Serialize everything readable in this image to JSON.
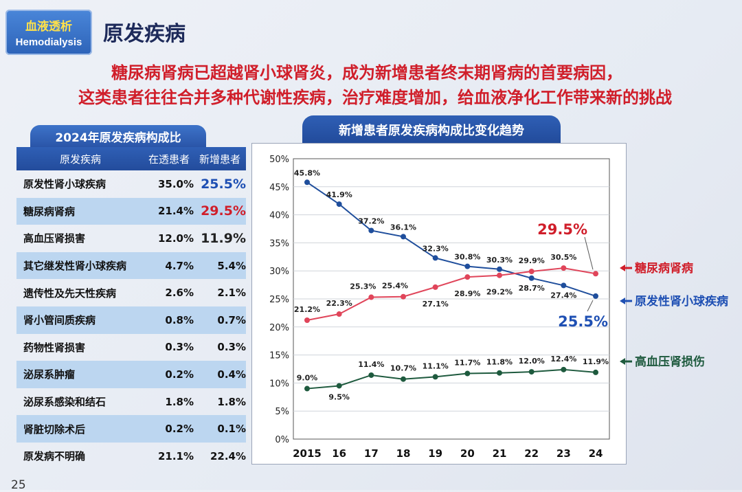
{
  "badge": {
    "zh": "血液透析",
    "en": "Hemodialysis"
  },
  "title": "原发疾病",
  "subtitle_lines": [
    "糖尿病肾病已超越肾小球肾炎，成为新增患者终末期肾病的首要病因，",
    "这类患者往往合并多种代谢性疾病，治疗难度增加，给血液净化工作带来新的挑战"
  ],
  "table": {
    "title": "2024年原发疾病构成比",
    "headers": [
      "原发疾病",
      "在透患者",
      "新增患者"
    ],
    "rows": [
      {
        "name": "原发性肾小球疾病",
        "dialysis": "35.0%",
        "new": "25.5%",
        "style": "big-blue"
      },
      {
        "name": "糖尿病肾病",
        "dialysis": "21.4%",
        "new": "29.5%",
        "style": "big-red"
      },
      {
        "name": "高血压肾损害",
        "dialysis": "12.0%",
        "new": "11.9%",
        "style": "big-dark"
      },
      {
        "name": "其它继发性肾小球疾病",
        "dialysis": "4.7%",
        "new": "5.4%",
        "style": ""
      },
      {
        "name": "遗传性及先天性疾病",
        "dialysis": "2.6%",
        "new": "2.1%",
        "style": ""
      },
      {
        "name": "肾小管间质疾病",
        "dialysis": "0.8%",
        "new": "0.7%",
        "style": ""
      },
      {
        "name": "药物性肾损害",
        "dialysis": "0.3%",
        "new": "0.3%",
        "style": ""
      },
      {
        "name": "泌尿系肿瘤",
        "dialysis": "0.2%",
        "new": "0.4%",
        "style": ""
      },
      {
        "name": "泌尿系感染和结石",
        "dialysis": "1.8%",
        "new": "1.8%",
        "style": ""
      },
      {
        "name": "肾脏切除术后",
        "dialysis": "0.2%",
        "new": "0.1%",
        "style": ""
      },
      {
        "name": "原发病不明确",
        "dialysis": "21.1%",
        "new": "22.4%",
        "style": ""
      }
    ]
  },
  "page_number": "25",
  "chart_data": {
    "type": "line",
    "title": "新增患者原发疾病构成比变化趋势",
    "categories": [
      "2015",
      "16",
      "17",
      "18",
      "19",
      "20",
      "21",
      "22",
      "23",
      "24"
    ],
    "ylim": [
      0,
      50
    ],
    "yticks": [
      "0%",
      "5%",
      "10%",
      "15%",
      "20%",
      "25%",
      "30%",
      "35%",
      "40%",
      "45%",
      "50%"
    ],
    "grid": true,
    "series": [
      {
        "name": "原发性肾小球疾病",
        "color": "#1f4e9c",
        "values": [
          45.8,
          41.9,
          37.2,
          36.1,
          32.3,
          30.8,
          30.3,
          28.7,
          27.4,
          25.5
        ],
        "labels": [
          "45.8%",
          "41.9%",
          "37.2%",
          "36.1%",
          "32.3%",
          "30.8%",
          "30.3%",
          "28.7%",
          "27.4%",
          "25.5%"
        ]
      },
      {
        "name": "糖尿病肾病",
        "color": "#e0455a",
        "values": [
          21.2,
          22.3,
          25.3,
          25.4,
          27.1,
          28.9,
          29.2,
          29.9,
          30.5,
          29.5
        ],
        "labels": [
          "21.2%",
          "22.3%",
          "25.3%",
          "25.4%",
          "27.1%",
          "28.9%",
          "29.2%",
          "29.9%",
          "30.5%",
          "29.5%"
        ]
      },
      {
        "name": "高血压肾损伤",
        "color": "#1e5a3e",
        "values": [
          9.0,
          9.5,
          11.4,
          10.7,
          11.1,
          11.7,
          11.8,
          12.0,
          12.4,
          11.9
        ],
        "labels": [
          "9.0%",
          "9.5%",
          "11.4%",
          "10.7%",
          "11.1%",
          "11.7%",
          "11.8%",
          "12.0%",
          "12.4%",
          "11.9%"
        ]
      }
    ],
    "legend": [
      {
        "label": "糖尿病肾病",
        "color": "#d01e2a"
      },
      {
        "label": "原发性肾小球疾病",
        "color": "#1e4fb3"
      },
      {
        "label": "高血压肾损伤",
        "color": "#1e5a3e"
      }
    ]
  }
}
